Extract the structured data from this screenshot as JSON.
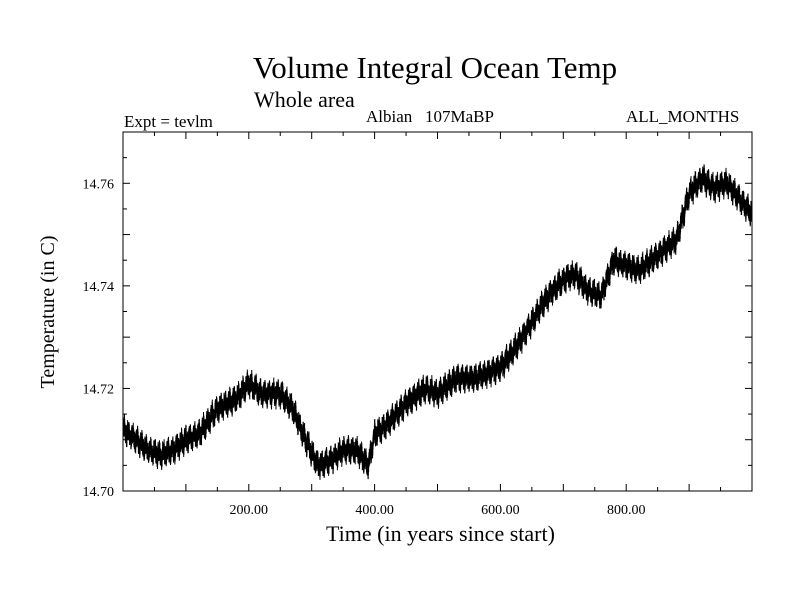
{
  "chart_data": {
    "type": "line",
    "title": "Volume Integral Ocean Temp",
    "subtitle": "Whole area",
    "annotations": {
      "left": "Expt = tevlm",
      "center": "Albian   107MaBP",
      "right": "ALL_MONTHS"
    },
    "xlabel": "Time (in years since start)",
    "ylabel": "Temperature (in C)",
    "xlim": [
      0,
      1000
    ],
    "ylim": [
      14.7,
      14.77
    ],
    "xticks": [
      200,
      400,
      600,
      800
    ],
    "xtick_labels": [
      "200.00",
      "400.00",
      "600.00",
      "800.00"
    ],
    "yticks": [
      14.7,
      14.72,
      14.74,
      14.76
    ],
    "ytick_labels": [
      "14.70",
      "14.72",
      "14.74",
      "14.76"
    ],
    "series": [
      {
        "name": "Volume integral ocean temperature",
        "color": "#000000",
        "noise_amplitude": 0.0018,
        "x": [
          0,
          20,
          40,
          60,
          80,
          100,
          120,
          150,
          180,
          200,
          220,
          250,
          270,
          290,
          310,
          330,
          350,
          370,
          390,
          400,
          420,
          450,
          480,
          500,
          530,
          560,
          600,
          630,
          650,
          670,
          690,
          710,
          720,
          740,
          760,
          780,
          800,
          820,
          840,
          860,
          880,
          900,
          920,
          940,
          960,
          980,
          1000
        ],
        "y": [
          14.712,
          14.71,
          14.708,
          14.707,
          14.708,
          14.71,
          14.711,
          14.716,
          14.718,
          14.721,
          14.719,
          14.719,
          14.716,
          14.71,
          14.705,
          14.706,
          14.708,
          14.708,
          14.705,
          14.711,
          14.713,
          14.717,
          14.72,
          14.719,
          14.722,
          14.722,
          14.724,
          14.729,
          14.733,
          14.737,
          14.74,
          14.742,
          14.742,
          14.739,
          14.738,
          14.745,
          14.744,
          14.743,
          14.745,
          14.747,
          14.749,
          14.758,
          14.761,
          14.759,
          14.76,
          14.757,
          14.754
        ]
      }
    ]
  }
}
